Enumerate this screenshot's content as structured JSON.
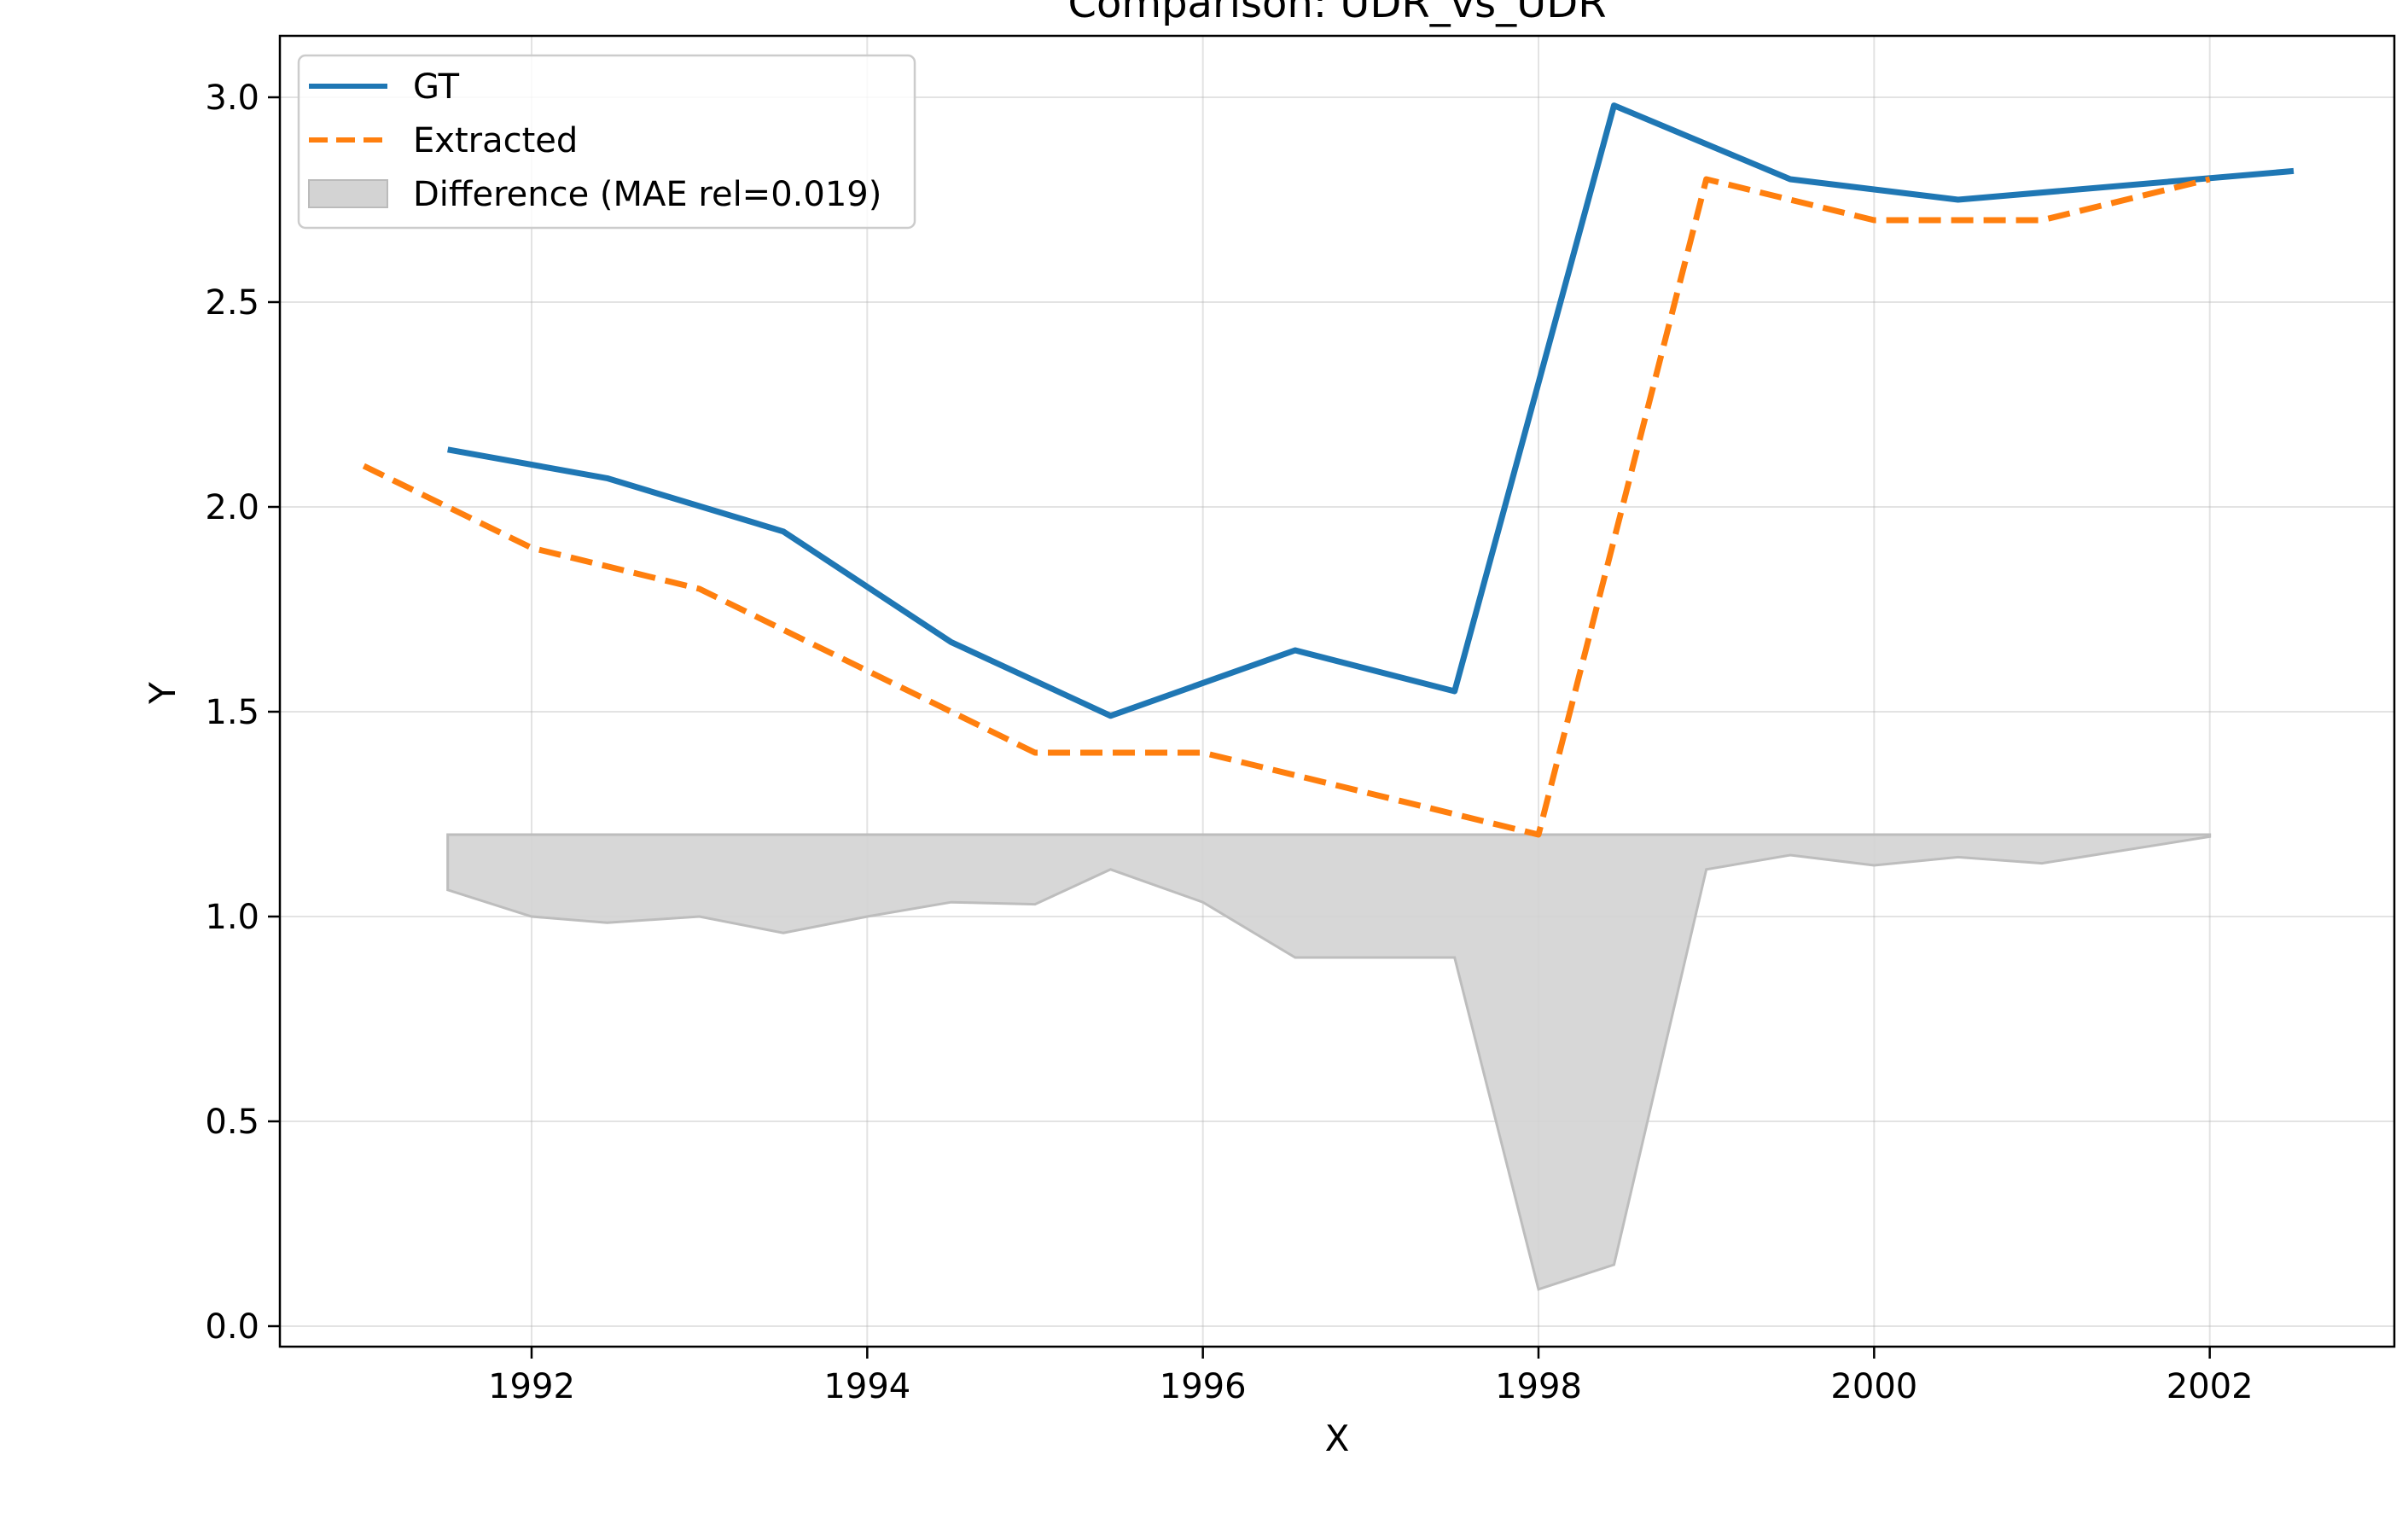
{
  "chart_data": {
    "type": "line",
    "title": "Comparison: UDR_vs_UDR",
    "xlabel": "X",
    "ylabel": "Y",
    "xlim": [
      1990.5,
      2003.1
    ],
    "ylim": [
      -0.05,
      3.15
    ],
    "xticks": [
      1992,
      1994,
      1996,
      1998,
      2000,
      2002
    ],
    "yticks": [
      0.0,
      0.5,
      1.0,
      1.5,
      2.0,
      2.5,
      3.0
    ],
    "xtick_labels": [
      "1992",
      "1994",
      "1996",
      "1998",
      "2000",
      "2002"
    ],
    "ytick_labels": [
      "0.0",
      "0.5",
      "1.0",
      "1.5",
      "2.0",
      "2.5",
      "3.0"
    ],
    "grid": true,
    "legend_position": "top-left",
    "series": [
      {
        "name": "GT",
        "style": "solid",
        "color": "#1f77b4",
        "x": [
          1991.5,
          1992.45,
          1993.5,
          1994.5,
          1995.45,
          1996.55,
          1997.5,
          1998.45,
          1999.5,
          2000.5,
          2002.5
        ],
        "y": [
          2.14,
          2.07,
          1.94,
          1.67,
          1.49,
          1.65,
          1.55,
          2.98,
          2.8,
          2.75,
          2.82
        ]
      },
      {
        "name": "Extracted",
        "style": "dashed",
        "color": "#ff7f0e",
        "x": [
          1991.0,
          1992.0,
          1993.0,
          1994.0,
          1995.0,
          1996.0,
          1997.0,
          1998.0,
          1999.0,
          2000.0,
          2001.0,
          2002.0
        ],
        "y": [
          2.1,
          1.9,
          1.8,
          1.6,
          1.4,
          1.4,
          1.3,
          1.2,
          2.8,
          2.7,
          2.7,
          2.8
        ]
      },
      {
        "name": "Difference (MAE rel=0.019)",
        "style": "fill",
        "color": "#d3d3d3",
        "baseline": 1.2,
        "x": [
          1991.5,
          1992.0,
          1992.45,
          1993.0,
          1993.5,
          1994.0,
          1994.5,
          1995.0,
          1995.45,
          1996.0,
          1996.55,
          1997.0,
          1997.5,
          1998.0,
          1998.45,
          1999.0,
          1999.5,
          2000.0,
          2000.5,
          2001.0,
          2002.0
        ],
        "y": [
          1.065,
          1.0,
          0.985,
          1.0,
          0.96,
          1.0,
          1.035,
          1.03,
          1.115,
          1.035,
          0.9,
          0.9,
          0.9,
          0.09,
          0.15,
          1.115,
          1.15,
          1.125,
          1.145,
          1.13,
          1.195
        ]
      }
    ]
  }
}
